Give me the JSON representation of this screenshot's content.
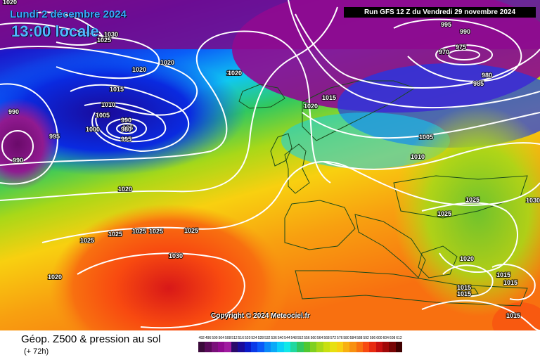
{
  "header": {
    "date": "Lundi 2 décembre 2024",
    "time": "13:00 locale",
    "run": "Run GFS 12 Z du Vendredi 29 novembre 2024"
  },
  "copyright": "Copyright © 2024 Meteociel.fr",
  "footer": {
    "title": "Géop. Z500 & pression au sol",
    "subtitle": "(+ 72h)"
  },
  "legend": {
    "values": [
      "492",
      "496",
      "500",
      "504",
      "508",
      "512",
      "516",
      "520",
      "524",
      "528",
      "532",
      "536",
      "540",
      "544",
      "548",
      "552",
      "556",
      "560",
      "564",
      "568",
      "572",
      "576",
      "580",
      "584",
      "588",
      "592",
      "596",
      "600",
      "604",
      "608",
      "612"
    ],
    "colors": [
      "#3a0a3a",
      "#5a0a5a",
      "#7a107a",
      "#900a90",
      "#a01aa0",
      "#2a0a6a",
      "#1a0a9a",
      "#0a1ac8",
      "#0a3ae8",
      "#0a5af8",
      "#0a8af8",
      "#0aaaf8",
      "#0ad0f8",
      "#10e8e8",
      "#20d8a0",
      "#30c860",
      "#50c830",
      "#80d020",
      "#a8d818",
      "#c8e010",
      "#e8e010",
      "#f8d010",
      "#f8b010",
      "#f89010",
      "#f87010",
      "#f84a10",
      "#e82a10",
      "#c81010",
      "#a00808",
      "#780404",
      "#400000"
    ]
  },
  "pressure_labels": [
    "1020",
    "1020",
    "1025",
    "1030",
    "1020",
    "1020",
    "1015",
    "1010",
    "1005",
    "1000",
    "990",
    "985",
    "980",
    "995",
    "990",
    "995",
    "990",
    "1020",
    "1025",
    "1025",
    "1025",
    "1025",
    "1025",
    "1020",
    "1030",
    "1020",
    "1015",
    "1020",
    "995",
    "990",
    "975",
    "970",
    "980",
    "985",
    "1005",
    "1010",
    "1025",
    "1025",
    "1030",
    "1020",
    "1015",
    "1015",
    "1015",
    "1015",
    "1015"
  ]
}
